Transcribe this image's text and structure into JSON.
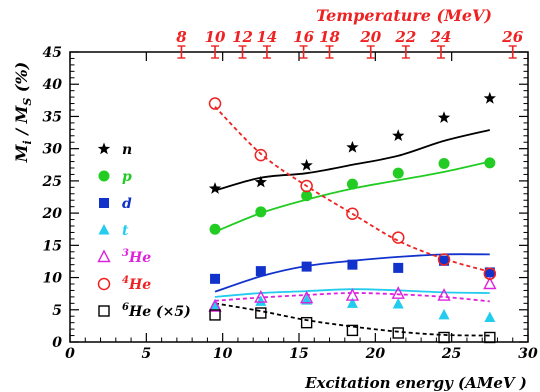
{
  "chart_data": {
    "type": "scatter",
    "xlabel": "Excitation energy (AMeV )",
    "ylabel_main": "M",
    "ylabel_sub1": "i",
    "ylabel_sep": " / M",
    "ylabel_sub2": "S",
    "ylabel_unit": " (%)",
    "xlim": [
      0,
      30
    ],
    "ylim": [
      0,
      45
    ],
    "x_ticks": [
      0,
      5,
      10,
      15,
      20,
      25,
      30
    ],
    "y_ticks": [
      0,
      5,
      10,
      15,
      20,
      25,
      30,
      35,
      40,
      45
    ],
    "top_axis": {
      "label": "Temperature (MeV)",
      "ticks": [
        {
          "label": "8",
          "x": 7.3
        },
        {
          "label": "10",
          "x": 9.5
        },
        {
          "label": "12",
          "x": 11.3
        },
        {
          "label": "14",
          "x": 12.9
        },
        {
          "label": "16",
          "x": 15.3
        },
        {
          "label": "18",
          "x": 17.0
        },
        {
          "label": "20",
          "x": 19.7
        },
        {
          "label": "22",
          "x": 22.0
        },
        {
          "label": "24",
          "x": 24.3
        },
        {
          "label": "26",
          "x": 29.0
        }
      ]
    },
    "x": [
      9.5,
      12.5,
      15.5,
      18.5,
      21.5,
      24.5,
      27.5
    ],
    "series": [
      {
        "name": "n",
        "marker": "star",
        "color": "#000000",
        "values": [
          23.8,
          24.8,
          27.4,
          30.2,
          32.0,
          34.8,
          37.8
        ],
        "fit_x": [
          9.5,
          12.5,
          15.5,
          18.5,
          21.5,
          24.5,
          27.5
        ],
        "fit_y": [
          23.5,
          25.5,
          26.2,
          27.5,
          28.9,
          31.2,
          32.9
        ],
        "fit_color": "#000000",
        "fit_dash": false
      },
      {
        "name": "p",
        "marker": "circle-filled",
        "color": "#22cc22",
        "values": [
          17.5,
          20.2,
          22.7,
          24.5,
          26.2,
          27.7,
          27.8
        ],
        "fit_x": [
          9.5,
          12.5,
          15.5,
          18.5,
          21.5,
          24.5,
          27.5
        ],
        "fit_y": [
          17.1,
          20.0,
          22.1,
          23.8,
          25.1,
          26.4,
          28.0
        ],
        "fit_color": "#22cc22",
        "fit_dash": false
      },
      {
        "name": "d",
        "marker": "square-filled",
        "color": "#1133cc",
        "values": [
          9.8,
          11.0,
          11.7,
          12.0,
          11.5,
          12.6,
          10.8
        ],
        "fit_x": [
          9.5,
          12.5,
          15.5,
          18.5,
          21.5,
          24.5,
          27.5
        ],
        "fit_y": [
          7.8,
          10.2,
          11.8,
          12.6,
          13.2,
          13.6,
          13.6
        ],
        "fit_color": "#1133cc",
        "fit_dash": false
      },
      {
        "name": "t",
        "marker": "triangle-filled",
        "color": "#22ccee",
        "values": [
          5.8,
          6.3,
          6.5,
          6.0,
          5.9,
          4.2,
          3.8
        ],
        "fit_x": [
          9.5,
          12.5,
          15.5,
          18.5,
          21.5,
          24.5,
          27.5
        ],
        "fit_y": [
          7.0,
          7.6,
          7.9,
          8.2,
          8.0,
          7.7,
          7.6
        ],
        "fit_color": "#22ccee",
        "fit_dash": false
      },
      {
        "name": "3He",
        "sup": "3",
        "base": "He",
        "marker": "triangle-open",
        "color": "#dd22dd",
        "values": [
          5.5,
          6.9,
          6.8,
          7.2,
          7.5,
          7.2,
          9.0
        ],
        "fit_x": [
          9.5,
          12.5,
          15.5,
          18.5,
          21.5,
          24.5,
          27.5
        ],
        "fit_y": [
          6.4,
          6.9,
          7.3,
          7.6,
          7.4,
          7.0,
          6.3
        ],
        "fit_color": "#dd22dd",
        "fit_dash": true
      },
      {
        "name": "4He",
        "sup": "4",
        "base": "He",
        "marker": "circle-open",
        "color": "#ee2222",
        "values": [
          37.0,
          29.0,
          24.2,
          19.9,
          16.2,
          12.8,
          10.6
        ],
        "fit_x": [
          9.5,
          12.5,
          15.5,
          18.5,
          21.5,
          24.5,
          27.5
        ],
        "fit_y": [
          36.5,
          29.2,
          24.2,
          19.9,
          15.7,
          12.9,
          10.9
        ],
        "fit_color": "#ee2222",
        "fit_dash": true
      },
      {
        "name": "6He (×5)",
        "sup": "6",
        "base": "He (×5)",
        "marker": "square-open",
        "color": "#000000",
        "values": [
          4.2,
          4.5,
          3.0,
          1.8,
          1.4,
          0.7,
          0.7
        ],
        "fit_x": [
          9.5,
          12.5,
          15.5,
          18.5,
          21.5,
          24.5,
          27.5
        ],
        "fit_y": [
          6.0,
          4.8,
          3.4,
          2.4,
          1.6,
          1.1,
          1.0
        ],
        "fit_color": "#000000",
        "fit_dash": true
      }
    ],
    "legend_placement": "left",
    "grid": false
  }
}
